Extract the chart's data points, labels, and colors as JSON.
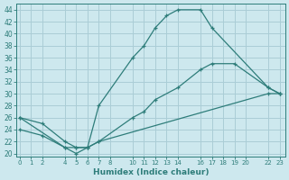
{
  "xlabel": "Humidex (Indice chaleur)",
  "bg_color": "#cde8ee",
  "grid_color": "#aacdd6",
  "line_color": "#2e7d7a",
  "line1_x": [
    0,
    4,
    5,
    6,
    7,
    10,
    11,
    12,
    13,
    14,
    16,
    17,
    22,
    23
  ],
  "line1_y": [
    26,
    21,
    20,
    21,
    28,
    36,
    38,
    41,
    43,
    44,
    44,
    41,
    31,
    30
  ],
  "line2_x": [
    0,
    2,
    4,
    5,
    6,
    7,
    10,
    11,
    12,
    14,
    16,
    17,
    19,
    22,
    23
  ],
  "line2_y": [
    26,
    25,
    22,
    21,
    21,
    22,
    26,
    27,
    29,
    31,
    34,
    35,
    35,
    31,
    30
  ],
  "line3_x": [
    0,
    2,
    4,
    5,
    6,
    7,
    22,
    23
  ],
  "line3_y": [
    24,
    23,
    21,
    21,
    21,
    22,
    30,
    30
  ],
  "xlim": [
    -0.3,
    23.5
  ],
  "ylim": [
    19.5,
    45
  ],
  "yticks": [
    20,
    22,
    24,
    26,
    28,
    30,
    32,
    34,
    36,
    38,
    40,
    42,
    44
  ],
  "xtick_positions": [
    0,
    1,
    2,
    4,
    5,
    6,
    7,
    8,
    10,
    11,
    12,
    13,
    14,
    16,
    17,
    18,
    19,
    20,
    22,
    23
  ],
  "xtick_labels": [
    "0",
    "1",
    "2",
    "4",
    "5",
    "6",
    "7",
    "8",
    "10",
    "11",
    "12",
    "13",
    "14",
    "16",
    "17",
    "18",
    "19",
    "20",
    "22",
    "23"
  ]
}
